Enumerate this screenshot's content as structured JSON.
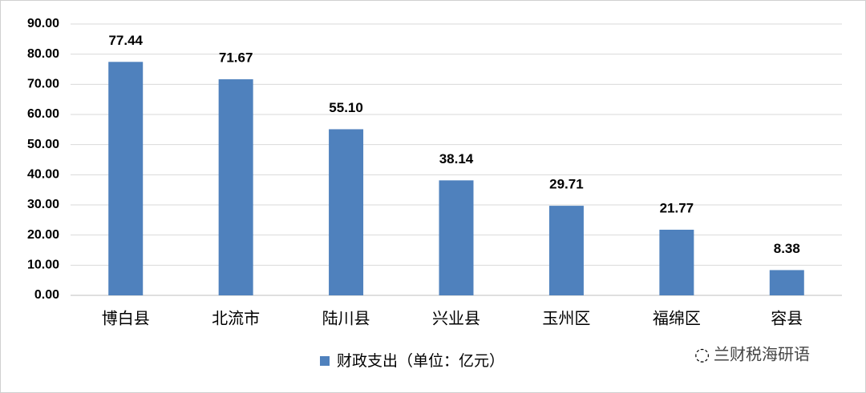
{
  "chart_data": {
    "type": "bar",
    "categories": [
      "博白县",
      "北流市",
      "陆川县",
      "兴业县",
      "玉州区",
      "福绵区",
      "容县"
    ],
    "series": [
      {
        "name": "财政支出（单位：亿元）",
        "color": "#4f81bd",
        "values": [
          77.44,
          71.67,
          55.1,
          38.14,
          29.71,
          21.77,
          8.38
        ],
        "value_labels": [
          "77.44",
          "71.67",
          "55.10",
          "38.14",
          "29.71",
          "21.77",
          "8.38"
        ]
      }
    ],
    "ylim": [
      0,
      90
    ],
    "yticks": [
      {
        "value": 0,
        "label": "0.00"
      },
      {
        "value": 10,
        "label": "10.00"
      },
      {
        "value": 20,
        "label": "20.00"
      },
      {
        "value": 30,
        "label": "30.00"
      },
      {
        "value": 40,
        "label": "40.00"
      },
      {
        "value": 50,
        "label": "50.00"
      },
      {
        "value": 60,
        "label": "60.00"
      },
      {
        "value": 70,
        "label": "70.00"
      },
      {
        "value": 80,
        "label": "80.00"
      },
      {
        "value": 90,
        "label": "90.00"
      }
    ],
    "grid": true,
    "legend": "bottom",
    "watermark": "兰财税海研语"
  }
}
